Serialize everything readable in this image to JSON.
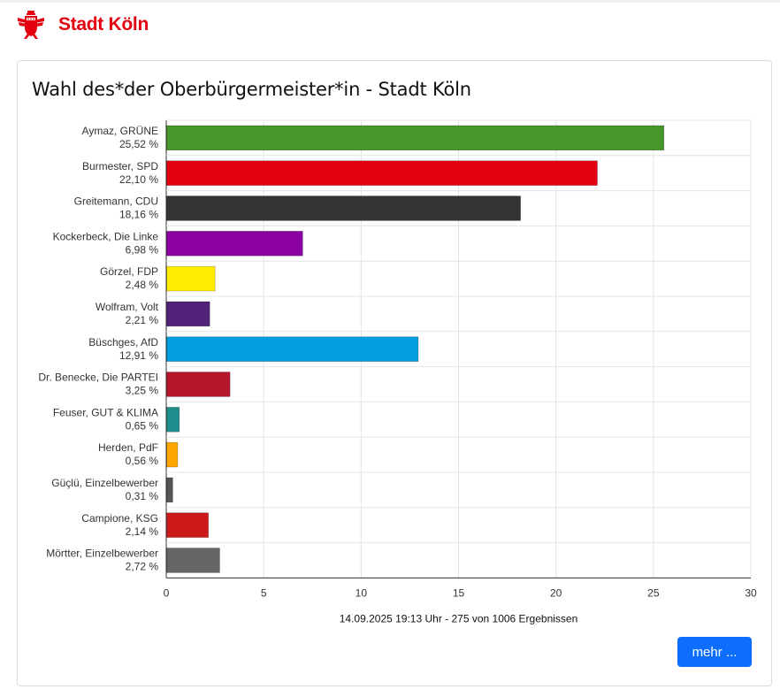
{
  "header": {
    "brand": "Stadt Köln"
  },
  "card": {
    "title": "Wahl des*der Oberbürgermeister*in - Stadt Köln"
  },
  "footer": {
    "status": "14.09.2025 19:13 Uhr - 275 von 1006 Ergebnissen",
    "more_label": "mehr ..."
  },
  "chart_data": {
    "type": "bar",
    "orientation": "horizontal",
    "categories": [
      "Aymaz, GRÜNE",
      "Burmester, SPD",
      "Greitemann, CDU",
      "Kockerbeck, Die Linke",
      "Görzel, FDP",
      "Wolfram, Volt",
      "Büschges, AfD",
      "Dr. Benecke, Die PARTEI",
      "Feuser, GUT & KLIMA",
      "Herden, PdF",
      "Güçlü, Einzelbewerber",
      "Campione, KSG",
      "Mörtter, Einzelbewerber"
    ],
    "values": [
      25.52,
      22.1,
      18.16,
      6.98,
      2.48,
      2.21,
      12.91,
      3.25,
      0.65,
      0.56,
      0.31,
      2.14,
      2.72
    ],
    "value_labels": [
      "25,52 %",
      "22,10 %",
      "18,16 %",
      "6,98 %",
      "2,48 %",
      "2,21 %",
      "12,91 %",
      "3,25 %",
      "0,65 %",
      "0,56 %",
      "0,31 %",
      "2,14 %",
      "2,72 %"
    ],
    "colors": [
      "#46962b",
      "#e3000f",
      "#333333",
      "#8a00a0",
      "#ffed00",
      "#502379",
      "#009ee0",
      "#b5152b",
      "#1f8d8b",
      "#ffa500",
      "#555555",
      "#cc1a1a",
      "#666666"
    ],
    "xlim": [
      0,
      30
    ],
    "xticks": [
      0,
      5,
      10,
      15,
      20,
      25,
      30
    ],
    "grid": true,
    "xlabel": "",
    "ylabel": ""
  }
}
